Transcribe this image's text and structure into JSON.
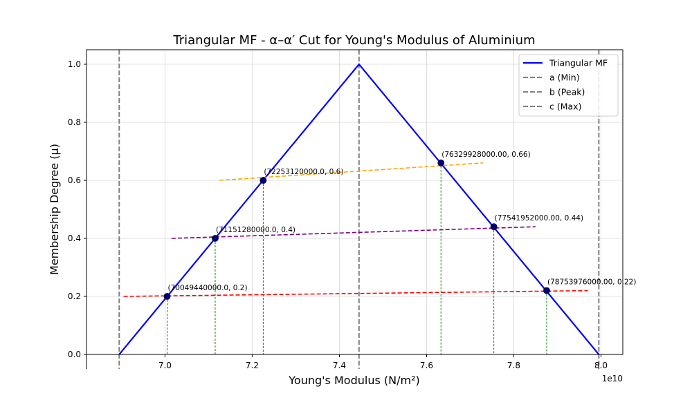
{
  "chart_data": {
    "type": "line",
    "title": "Triangular MF - α–α′ Cut for Young's Modulus of Aluminium",
    "xlabel": "Young's Modulus (N/m²)",
    "ylabel": "Membership Degree (μ)",
    "x_offset_label": "1e10",
    "xlim": [
      68200000000,
      80500000000
    ],
    "ylim": [
      0,
      1.05
    ],
    "grid": true,
    "legend_position": "top-right",
    "x_ticks": [
      {
        "value": 70000000000,
        "label": "7.0"
      },
      {
        "value": 72000000000,
        "label": "7.2"
      },
      {
        "value": 74000000000,
        "label": "7.4"
      },
      {
        "value": 76000000000,
        "label": "7.6"
      },
      {
        "value": 78000000000,
        "label": "7.8"
      },
      {
        "value": 80000000000,
        "label": "8.0"
      }
    ],
    "y_ticks": [
      {
        "value": 0.0,
        "label": "0.0"
      },
      {
        "value": 0.2,
        "label": "0.2"
      },
      {
        "value": 0.4,
        "label": "0.4"
      },
      {
        "value": 0.6,
        "label": "0.6"
      },
      {
        "value": 0.8,
        "label": "0.8"
      },
      {
        "value": 1.0,
        "label": "1.0"
      }
    ],
    "triangle": {
      "name": "Triangular MF",
      "color": "#0000ff",
      "x": [
        68950000000,
        74450000000,
        79950000000
      ],
      "y": [
        0,
        1,
        0
      ]
    },
    "reference_lines": [
      {
        "name": "a (Min)",
        "x": 68950000000,
        "color": "#808080"
      },
      {
        "name": "b (Peak)",
        "x": 74450000000,
        "color": "#808080"
      },
      {
        "name": "c (Max)",
        "x": 79950000000,
        "color": "#808080"
      }
    ],
    "cut_points": [
      {
        "x": 70049440000,
        "y": 0.2,
        "label": "(70049440000.0, 0.2)"
      },
      {
        "x": 71151280000,
        "y": 0.4,
        "label": "(71151280000.0, 0.4)"
      },
      {
        "x": 72253120000,
        "y": 0.6,
        "label": "(72253120000.0, 0.6)"
      },
      {
        "x": 76329928000,
        "y": 0.66,
        "label": "(76329928000.00, 0.66)"
      },
      {
        "x": 77541952000,
        "y": 0.44,
        "label": "(77541952000.00, 0.44)"
      },
      {
        "x": 78753976000,
        "y": 0.22,
        "label": "(78753976000.00, 0.22)"
      }
    ],
    "cut_lines": [
      {
        "color": "#ff0000",
        "x": [
          69050000000,
          79700000000
        ],
        "y": [
          0.2,
          0.22
        ]
      },
      {
        "color": "#800080",
        "x": [
          70150000000,
          78500000000
        ],
        "y": [
          0.4,
          0.44
        ]
      },
      {
        "color": "#ffa500",
        "x": [
          71250000000,
          77300000000
        ],
        "y": [
          0.6,
          0.66
        ]
      }
    ],
    "drop_line_color": "#008000",
    "point_color": "#000080"
  }
}
